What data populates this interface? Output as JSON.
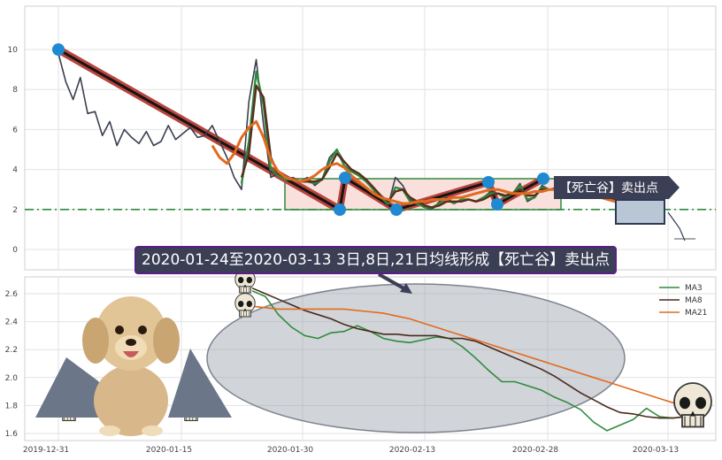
{
  "chart_data": [
    {
      "type": "line",
      "panel": "price",
      "x_labels": [
        "2019-12-31",
        "2020-01-15",
        "2020-01-30",
        "2020-02-13",
        "2020-02-28",
        "2020-03-13"
      ],
      "yticks": [
        0,
        2,
        4,
        6,
        8,
        10
      ],
      "ylim": [
        -1,
        12
      ],
      "grid": true,
      "series": [
        {
          "role": "close",
          "color": "#3a3f4f",
          "values": [
            9.8,
            8.4,
            7.5,
            8.6,
            6.8,
            6.9,
            5.7,
            6.4,
            5.2,
            6.0,
            5.6,
            5.3,
            5.9,
            5.2,
            5.4,
            6.2,
            5.5,
            5.8,
            6.1,
            5.6,
            5.7,
            6.2,
            5.4,
            4.6,
            3.6,
            3.0,
            7.4,
            9.5,
            6.2,
            3.6,
            3.8,
            3.5,
            3.6,
            3.4,
            3.6,
            3.2,
            3.5,
            4.6,
            5.0,
            4.4,
            4.0,
            3.8,
            3.4,
            3.0,
            2.6,
            2.2,
            3.6,
            3.2,
            2.5,
            2.3,
            2.1,
            2.0,
            2.4,
            2.6,
            2.3,
            2.5,
            2.5,
            2.4,
            2.6,
            2.9,
            2.8,
            2.6,
            2.8,
            3.3,
            2.4,
            2.6,
            3.2,
            3.0,
            3.1,
            3.5,
            3.0,
            2.6,
            2.8,
            2.9,
            2.6,
            2.5,
            2.4,
            2.6,
            2.4,
            2.2,
            2.0,
            1.8,
            1.7
          ]
        },
        {
          "role": "ma",
          "color": "#2f8a3c",
          "values": [
            null,
            null,
            null,
            null,
            null,
            null,
            null,
            null,
            null,
            null,
            null,
            null,
            null,
            null,
            null,
            null,
            null,
            null,
            null,
            null,
            null,
            null,
            null,
            null,
            null,
            3.3,
            5.4,
            8.9,
            7.2,
            4.0,
            3.7,
            3.5,
            3.5,
            3.4,
            3.4,
            3.3,
            3.5,
            4.4,
            5.0,
            4.2,
            3.9,
            3.7,
            3.4,
            3.0,
            2.6,
            2.3,
            3.1,
            3.0,
            2.4,
            2.3,
            2.1,
            2.1,
            2.3,
            2.5,
            2.3,
            2.5,
            2.5,
            2.4,
            2.6,
            2.8,
            2.8,
            2.6,
            2.8,
            3.2,
            2.5,
            2.6,
            3.1,
            3.0,
            3.0,
            3.4,
            3.0,
            2.7,
            2.8,
            2.8,
            2.6,
            2.5,
            2.4,
            2.5,
            2.4,
            2.2,
            2.0,
            1.9,
            1.8
          ]
        },
        {
          "role": "ma",
          "color": "#5a2d1f",
          "values": [
            null,
            null,
            null,
            null,
            null,
            null,
            null,
            null,
            null,
            null,
            null,
            null,
            null,
            null,
            null,
            null,
            null,
            null,
            null,
            null,
            null,
            null,
            null,
            null,
            null,
            3.6,
            4.8,
            8.2,
            7.6,
            4.6,
            3.8,
            3.6,
            3.5,
            3.4,
            3.4,
            3.4,
            3.5,
            4.1,
            4.8,
            4.4,
            4.0,
            3.8,
            3.5,
            3.1,
            2.7,
            2.4,
            2.9,
            3.0,
            2.6,
            2.4,
            2.2,
            2.1,
            2.2,
            2.4,
            2.4,
            2.4,
            2.5,
            2.4,
            2.5,
            2.7,
            2.8,
            2.7,
            2.8,
            3.0,
            2.7,
            2.7,
            3.0,
            3.0,
            3.0,
            3.2,
            3.0,
            2.8,
            2.8,
            2.8,
            2.7,
            2.6,
            2.5,
            2.5,
            2.4,
            2.3,
            2.1,
            2.0,
            1.9
          ]
        },
        {
          "role": "ma",
          "color": "#e26a1e",
          "values": [
            null,
            null,
            null,
            null,
            null,
            null,
            null,
            null,
            null,
            null,
            null,
            null,
            null,
            null,
            null,
            null,
            null,
            null,
            null,
            null,
            null,
            5.2,
            4.6,
            4.3,
            4.8,
            5.6,
            6.1,
            6.4,
            5.6,
            4.5,
            3.9,
            3.6,
            3.5,
            3.4,
            3.5,
            3.7,
            4.0,
            4.2,
            4.3,
            4.1,
            3.7,
            3.4,
            3.1,
            2.8,
            2.6,
            2.5,
            2.4,
            2.3,
            2.3,
            2.4,
            2.4,
            2.5,
            2.5,
            2.5,
            2.6,
            2.6,
            2.7,
            2.8,
            2.9,
            3.0,
            3.0,
            2.9,
            2.8,
            2.8,
            2.8,
            2.9,
            2.9,
            3.0,
            3.0,
            3.0,
            2.9,
            2.8,
            2.7,
            2.6,
            2.6,
            2.5,
            2.4,
            2.3,
            2.2,
            2.1,
            2.0
          ]
        }
      ],
      "hline": 2,
      "sell_label": "【死亡谷】卖出点"
    },
    {
      "type": "line",
      "panel": "ma",
      "x_labels": [
        "2019-12-31",
        "2020-01-15",
        "2020-01-30",
        "2020-02-13",
        "2020-02-28",
        "2020-03-13"
      ],
      "yticks": [
        "1.6",
        "1.8",
        "2.0",
        "2.2",
        "2.4",
        "2.6"
      ],
      "ylim": [
        1.55,
        2.74
      ],
      "legend_position": "top-right",
      "series": [
        {
          "name": "MA3",
          "color": "#2f8a3c",
          "values": [
            2.62,
            2.58,
            2.45,
            2.36,
            2.3,
            2.28,
            2.32,
            2.33,
            2.37,
            2.33,
            2.28,
            2.26,
            2.25,
            2.27,
            2.29,
            2.28,
            2.22,
            2.14,
            2.05,
            1.97,
            1.97,
            1.94,
            1.91,
            1.86,
            1.82,
            1.77,
            1.68,
            1.62,
            1.66,
            1.7,
            1.78,
            1.72,
            1.71,
            1.72,
            1.71
          ]
        },
        {
          "name": "MA8",
          "color": "#4a2a1c",
          "values": [
            2.64,
            2.6,
            2.56,
            2.52,
            2.48,
            2.45,
            2.42,
            2.38,
            2.35,
            2.33,
            2.31,
            2.31,
            2.3,
            2.3,
            2.3,
            2.28,
            2.28,
            2.26,
            2.22,
            2.18,
            2.14,
            2.1,
            2.06,
            2.01,
            1.95,
            1.89,
            1.84,
            1.79,
            1.75,
            1.74,
            1.72,
            1.71,
            1.71,
            1.72,
            1.73
          ]
        },
        {
          "name": "MA21",
          "color": "#e26a1e",
          "values": [
            2.51,
            2.5,
            2.49,
            2.49,
            2.49,
            2.49,
            2.49,
            2.49,
            2.48,
            2.47,
            2.46,
            2.44,
            2.42,
            2.39,
            2.36,
            2.33,
            2.3,
            2.27,
            2.24,
            2.21,
            2.18,
            2.15,
            2.12,
            2.09,
            2.06,
            2.03,
            2.0,
            1.97,
            1.94,
            1.91,
            1.88,
            1.85,
            1.82,
            1.79,
            1.77
          ]
        }
      ]
    }
  ],
  "annotation": {
    "title": "2020-01-24至2020-03-13 3日,8日,21日均线形成【死亡谷】卖出点"
  }
}
